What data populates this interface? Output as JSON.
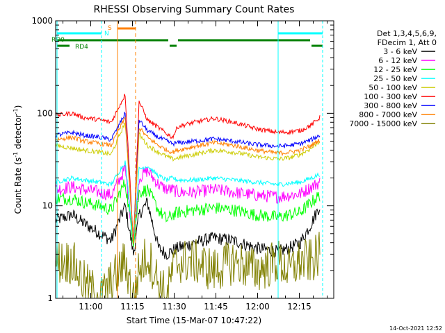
{
  "footer_date": "14-Oct-2021 12:52",
  "chart_data": {
    "type": "line",
    "title": "RHESSI Observing Summary Count Rates",
    "xlabel": "Start Time (15-Mar-07 10:47:22)",
    "ylabel_main": "Count Rate (s",
    "ylabel_sup": "-1",
    "ylabel_mid": " detector",
    "ylabel_sup2": "-1",
    "ylabel_end": ")",
    "y_scale": "log",
    "ylim": [
      1,
      1000
    ],
    "xlim_minutes": [
      0,
      100
    ],
    "x_ticks": [
      {
        "label": "11:00",
        "minute": 12.63
      },
      {
        "label": "11:15",
        "minute": 27.63
      },
      {
        "label": "11:30",
        "minute": 42.63
      },
      {
        "label": "11:45",
        "minute": 57.63
      },
      {
        "label": "12:00",
        "minute": 72.63
      },
      {
        "label": "12:15",
        "minute": 87.63
      }
    ],
    "y_ticks": [
      {
        "label": "1",
        "value": 1
      },
      {
        "label": "10",
        "value": 10
      },
      {
        "label": "100",
        "value": 100
      },
      {
        "label": "1000",
        "value": 1000
      }
    ],
    "legend_header": [
      "Det 1,3,4,5,6,9,",
      "FDecim 1, Att 0"
    ],
    "legend_position": "right",
    "series": [
      {
        "name": "3 - 6 keV",
        "color": "#000000",
        "x": [
          0,
          6,
          10,
          16,
          20,
          25,
          28,
          30,
          33,
          37,
          40,
          42,
          44,
          50,
          57,
          64,
          72,
          80,
          84,
          88,
          92,
          95
        ],
        "y": [
          7,
          8,
          6.5,
          5,
          4.2,
          10,
          3,
          8,
          11,
          3.5,
          3,
          3.3,
          3.5,
          4,
          4.5,
          4.2,
          3.5,
          3.2,
          3.5,
          4,
          6.5,
          10
        ]
      },
      {
        "name": "6 - 12 keV",
        "color": "#ff00ff",
        "x": [
          0,
          6,
          10,
          16,
          20,
          25,
          28,
          30,
          33,
          37,
          40,
          42,
          44,
          50,
          57,
          64,
          72,
          80,
          84,
          88,
          92,
          95
        ],
        "y": [
          15,
          16,
          15,
          14,
          13,
          25,
          4,
          20,
          24,
          17,
          15,
          15,
          14,
          14,
          15,
          14,
          13,
          12.5,
          13,
          13.5,
          16,
          18
        ]
      },
      {
        "name": "12 - 25 keV",
        "color": "#00ff00",
        "x": [
          0,
          6,
          10,
          16,
          20,
          25,
          28,
          30,
          33,
          37,
          40,
          42,
          44,
          50,
          57,
          64,
          72,
          80,
          84,
          88,
          92,
          95
        ],
        "y": [
          12,
          12,
          11,
          10,
          9,
          18,
          4,
          14,
          15,
          9,
          7,
          8,
          8.5,
          9,
          9.5,
          9,
          8,
          7.5,
          8,
          8.5,
          11,
          13
        ]
      },
      {
        "name": "25 - 50 keV",
        "color": "#00ffff",
        "x": [
          0,
          6,
          10,
          16,
          20,
          25,
          28,
          30,
          33,
          37,
          40,
          42,
          44,
          50,
          57,
          64,
          72,
          80,
          84,
          88,
          92,
          95
        ],
        "y": [
          18,
          20,
          19,
          18,
          17,
          30,
          4,
          25,
          27,
          21,
          19,
          20,
          19,
          19,
          20,
          19,
          18,
          17,
          17.5,
          18,
          20,
          22
        ]
      },
      {
        "name": "50 - 100 keV",
        "color": "#cccc00",
        "x": [
          0,
          6,
          10,
          16,
          20,
          25,
          28,
          30,
          33,
          37,
          40,
          42,
          44,
          50,
          57,
          64,
          72,
          80,
          84,
          88,
          92,
          95
        ],
        "y": [
          45,
          42,
          40,
          38,
          36,
          80,
          4,
          60,
          45,
          38,
          34,
          32,
          33,
          36,
          40,
          38,
          34,
          32,
          33,
          36,
          42,
          50
        ]
      },
      {
        "name": "100 - 300 keV",
        "color": "#ff0000",
        "x": [
          0,
          6,
          10,
          16,
          20,
          25,
          28,
          30,
          33,
          37,
          40,
          42,
          44,
          50,
          57,
          64,
          72,
          80,
          84,
          88,
          92,
          95
        ],
        "y": [
          95,
          100,
          90,
          85,
          80,
          160,
          4,
          135,
          85,
          70,
          60,
          55,
          72,
          80,
          88,
          80,
          68,
          62,
          63,
          65,
          75,
          90
        ]
      },
      {
        "name": "300 - 800 keV",
        "color": "#0000ff",
        "x": [
          0,
          6,
          10,
          16,
          20,
          25,
          28,
          30,
          33,
          37,
          40,
          42,
          44,
          50,
          57,
          64,
          72,
          80,
          84,
          88,
          92,
          95
        ],
        "y": [
          58,
          62,
          58,
          55,
          52,
          100,
          4,
          85,
          65,
          55,
          50,
          47,
          48,
          50,
          53,
          50,
          46,
          44,
          45,
          47,
          52,
          58
        ]
      },
      {
        "name": "800 - 7000 keV",
        "color": "#ff8000",
        "x": [
          0,
          6,
          10,
          16,
          20,
          25,
          28,
          30,
          33,
          37,
          40,
          42,
          44,
          50,
          57,
          64,
          72,
          80,
          84,
          88,
          92,
          95
        ],
        "y": [
          52,
          55,
          50,
          47,
          45,
          90,
          4,
          70,
          55,
          45,
          40,
          38,
          40,
          44,
          48,
          45,
          40,
          37,
          38,
          40,
          45,
          52
        ]
      },
      {
        "name": "7000 - 15000 keV",
        "color": "#808000",
        "x": [
          0,
          6,
          10,
          16,
          20,
          25,
          28,
          30,
          33,
          37,
          40,
          42,
          44,
          50,
          57,
          64,
          72,
          80,
          84,
          88,
          92,
          95
        ],
        "y": [
          2.5,
          2.5,
          1.5,
          1,
          1.5,
          2.5,
          1,
          2,
          3,
          1.5,
          1,
          2,
          2.5,
          2.5,
          2,
          2.5,
          2,
          2.5,
          2,
          2.5,
          2.5,
          3
        ]
      }
    ],
    "annotations": [
      {
        "label": "S",
        "color": "#ff8000"
      },
      {
        "label": "N",
        "color": "#00ffff"
      },
      {
        "label": "RD0",
        "color": "#008000"
      },
      {
        "label": "RD4",
        "color": "#008000"
      }
    ]
  }
}
